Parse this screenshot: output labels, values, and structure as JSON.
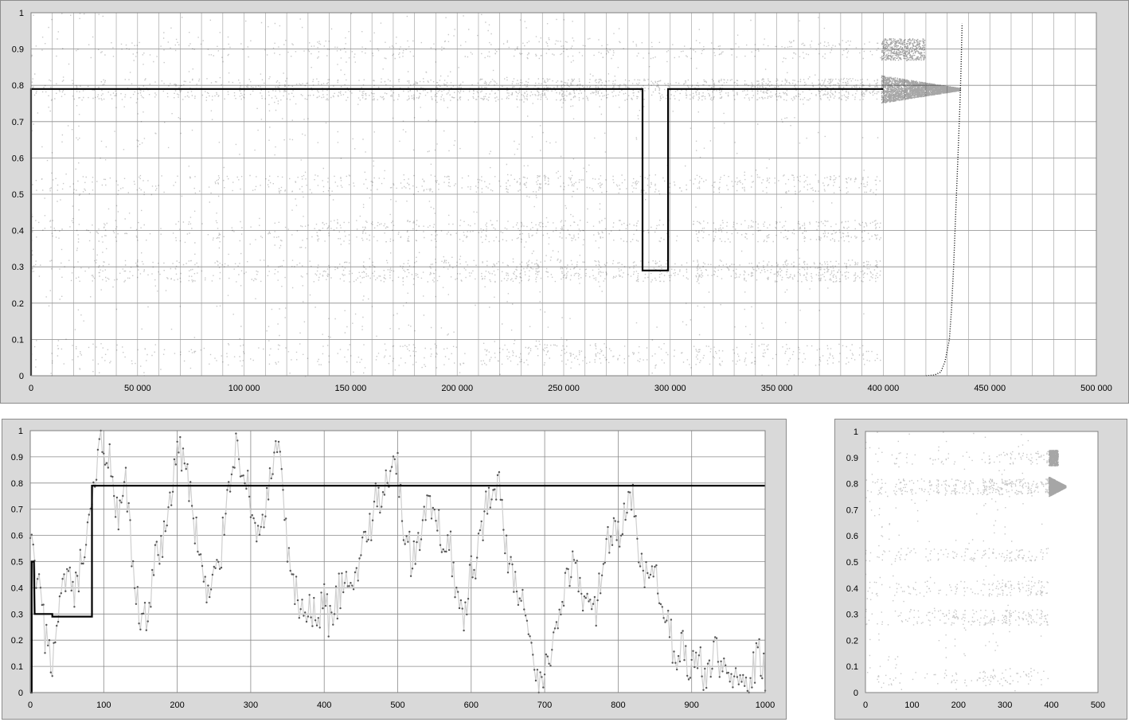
{
  "charts": [
    {
      "id": "top",
      "chart_data": {
        "type": "scatter",
        "title": "",
        "xlabel": "",
        "ylabel": "",
        "xlim": [
          0,
          500000
        ],
        "ylim": [
          0,
          1
        ],
        "x_ticks": [
          0,
          50000,
          100000,
          150000,
          200000,
          250000,
          300000,
          350000,
          400000,
          450000,
          500000
        ],
        "x_tick_labels": [
          "0",
          "50 000",
          "100 000",
          "150 000",
          "200 000",
          "250 000",
          "300 000",
          "350 000",
          "400 000",
          "450 000",
          "500 000"
        ],
        "y_ticks": [
          0,
          0.1,
          0.2,
          0.3,
          0.4,
          0.5,
          0.6,
          0.7,
          0.8,
          0.9,
          1
        ],
        "y_tick_labels": [
          "0",
          "0.1",
          "0.2",
          "0.3",
          "0.4",
          "0.5",
          "0.6",
          "0.7",
          "0.8",
          "0.9",
          "1"
        ],
        "grid": true,
        "minor_x_gridlines": 5,
        "series": [
          {
            "kind": "dense-translucent-scatter",
            "color": "#000000",
            "x_range": [
              0,
              436000
            ],
            "concentrations": [
              0.8,
              0.5,
              0.4,
              0.3,
              0.05,
              0.9
            ],
            "converges_to": 0.79
          },
          {
            "kind": "step-line",
            "color": "#000000",
            "points": [
              [
                0,
                0
              ],
              [
                0,
                0.79
              ],
              [
                287000,
                0.79
              ],
              [
                287000,
                0.29
              ],
              [
                299000,
                0.29
              ],
              [
                299000,
                0.79
              ],
              [
                400000,
                0.79
              ]
            ]
          },
          {
            "kind": "dotted-curve",
            "color": "#000000",
            "points": [
              [
                420000,
                0
              ],
              [
                424000,
                0.002
              ],
              [
                427000,
                0.01
              ],
              [
                429000,
                0.04
              ],
              [
                431000,
                0.1
              ],
              [
                432000,
                0.18
              ],
              [
                433000,
                0.3
              ],
              [
                434000,
                0.45
              ],
              [
                435000,
                0.6
              ],
              [
                436000,
                0.75
              ],
              [
                436500,
                0.85
              ],
              [
                437000,
                0.97
              ]
            ]
          }
        ]
      }
    },
    {
      "id": "bottom-left",
      "chart_data": {
        "type": "line",
        "title": "",
        "xlabel": "",
        "ylabel": "",
        "xlim": [
          0,
          1000
        ],
        "ylim": [
          0,
          1
        ],
        "x_ticks": [
          0,
          100,
          200,
          300,
          400,
          500,
          600,
          700,
          800,
          900,
          1000
        ],
        "x_tick_labels": [
          "0",
          "100",
          "200",
          "300",
          "400",
          "500",
          "600",
          "700",
          "800",
          "900",
          "1000"
        ],
        "y_ticks": [
          0,
          0.1,
          0.2,
          0.3,
          0.4,
          0.5,
          0.6,
          0.7,
          0.8,
          0.9,
          1
        ],
        "y_tick_labels": [
          "0",
          "0.1",
          "0.2",
          "0.3",
          "0.4",
          "0.5",
          "0.6",
          "0.7",
          "0.8",
          "0.9",
          "1"
        ],
        "grid": true,
        "series": [
          {
            "kind": "noisy-walk",
            "line_color": "#cfcfcf",
            "marker_color": "#555555",
            "points": [
              [
                0,
                0.57
              ],
              [
                10,
                0.42
              ],
              [
                20,
                0.22
              ],
              [
                30,
                0.12
              ],
              [
                40,
                0.3
              ],
              [
                50,
                0.45
              ],
              [
                60,
                0.35
              ],
              [
                70,
                0.5
              ],
              [
                80,
                0.6
              ],
              [
                88,
                0.8
              ],
              [
                95,
                0.97
              ],
              [
                100,
                0.95
              ],
              [
                110,
                0.85
              ],
              [
                120,
                0.62
              ],
              [
                130,
                0.8
              ],
              [
                140,
                0.45
              ],
              [
                150,
                0.25
              ],
              [
                160,
                0.32
              ],
              [
                170,
                0.5
              ],
              [
                180,
                0.55
              ],
              [
                190,
                0.75
              ],
              [
                200,
                0.92
              ],
              [
                210,
                0.9
              ],
              [
                220,
                0.7
              ],
              [
                230,
                0.55
              ],
              [
                240,
                0.35
              ],
              [
                250,
                0.42
              ],
              [
                260,
                0.55
              ],
              [
                270,
                0.8
              ],
              [
                280,
                0.95
              ],
              [
                290,
                0.85
              ],
              [
                300,
                0.72
              ],
              [
                310,
                0.6
              ],
              [
                320,
                0.7
              ],
              [
                330,
                0.85
              ],
              [
                340,
                0.95
              ],
              [
                350,
                0.5
              ],
              [
                360,
                0.38
              ],
              [
                370,
                0.32
              ],
              [
                380,
                0.3
              ],
              [
                390,
                0.28
              ],
              [
                400,
                0.35
              ],
              [
                410,
                0.25
              ],
              [
                420,
                0.38
              ],
              [
                430,
                0.42
              ],
              [
                440,
                0.38
              ],
              [
                450,
                0.55
              ],
              [
                460,
                0.62
              ],
              [
                470,
                0.72
              ],
              [
                480,
                0.78
              ],
              [
                490,
                0.88
              ],
              [
                500,
                0.85
              ],
              [
                510,
                0.6
              ],
              [
                520,
                0.5
              ],
              [
                530,
                0.6
              ],
              [
                540,
                0.72
              ],
              [
                550,
                0.65
              ],
              [
                560,
                0.6
              ],
              [
                570,
                0.62
              ],
              [
                580,
                0.35
              ],
              [
                590,
                0.28
              ],
              [
                600,
                0.45
              ],
              [
                610,
                0.55
              ],
              [
                620,
                0.7
              ],
              [
                630,
                0.82
              ],
              [
                640,
                0.75
              ],
              [
                650,
                0.5
              ],
              [
                660,
                0.42
              ],
              [
                670,
                0.35
              ],
              [
                680,
                0.15
              ],
              [
                690,
                0.03
              ],
              [
                700,
                0.08
              ],
              [
                710,
                0.18
              ],
              [
                720,
                0.32
              ],
              [
                730,
                0.45
              ],
              [
                740,
                0.5
              ],
              [
                750,
                0.35
              ],
              [
                760,
                0.4
              ],
              [
                770,
                0.3
              ],
              [
                780,
                0.55
              ],
              [
                790,
                0.62
              ],
              [
                800,
                0.58
              ],
              [
                810,
                0.7
              ],
              [
                820,
                0.72
              ],
              [
                830,
                0.5
              ],
              [
                840,
                0.4
              ],
              [
                850,
                0.45
              ],
              [
                860,
                0.3
              ],
              [
                870,
                0.22
              ],
              [
                880,
                0.15
              ],
              [
                890,
                0.18
              ],
              [
                900,
                0.08
              ],
              [
                910,
                0.12
              ],
              [
                920,
                0.06
              ],
              [
                930,
                0.15
              ],
              [
                940,
                0.1
              ],
              [
                950,
                0.05
              ],
              [
                960,
                0.12
              ],
              [
                970,
                0.08
              ],
              [
                980,
                0.04
              ],
              [
                990,
                0.15
              ],
              [
                1000,
                0.06
              ]
            ]
          },
          {
            "kind": "step-line",
            "color": "#000000",
            "points": [
              [
                0,
                0
              ],
              [
                2,
                0
              ],
              [
                2,
                0.5
              ],
              [
                5,
                0.5
              ],
              [
                6,
                0.3
              ],
              [
                30,
                0.3
              ],
              [
                30,
                0.29
              ],
              [
                84,
                0.29
              ],
              [
                84,
                0.79
              ],
              [
                1000,
                0.79
              ]
            ]
          }
        ]
      }
    },
    {
      "id": "bottom-right",
      "chart_data": {
        "type": "scatter",
        "title": "",
        "xlabel": "",
        "ylabel": "",
        "xlim": [
          0,
          500
        ],
        "ylim": [
          0,
          1
        ],
        "x_ticks": [
          0,
          100,
          200,
          300,
          400,
          500
        ],
        "x_tick_labels": [
          "0",
          "100",
          "200",
          "300",
          "400",
          "500"
        ],
        "y_ticks": [
          0,
          0.1,
          0.2,
          0.3,
          0.4,
          0.5,
          0.6,
          0.7,
          0.8,
          0.9,
          1
        ],
        "y_tick_labels": [
          "0",
          "0.1",
          "0.2",
          "0.3",
          "0.4",
          "0.5",
          "0.6",
          "0.7",
          "0.8",
          "0.9",
          "1"
        ],
        "grid": false,
        "series": [
          {
            "kind": "dense-translucent-scatter",
            "color": "#000000",
            "x_range": [
              0,
              430
            ],
            "concentrations": [
              0.8,
              0.5,
              0.4,
              0.3,
              0.05,
              0.9
            ],
            "converges_to": 0.79
          }
        ]
      }
    }
  ]
}
